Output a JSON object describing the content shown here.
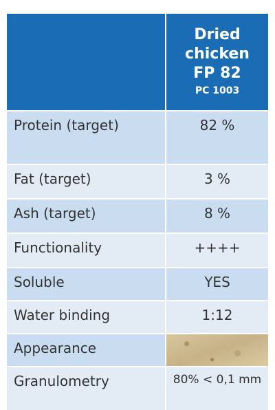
{
  "table": {
    "header": {
      "product": [
        "Dried",
        "chicken",
        "FP 82"
      ],
      "code": "PC 1003"
    },
    "rows": [
      {
        "label": "Protein (target)",
        "value": "82 %"
      },
      {
        "label": "Fat (target)",
        "value": "3 %"
      },
      {
        "label": "Ash (target)",
        "value": "8 %"
      },
      {
        "label": "Functionality",
        "value": "++++"
      },
      {
        "label": "Soluble",
        "value": "YES"
      },
      {
        "label": "Water binding",
        "value": "1:12"
      },
      {
        "label": "Appearance"
      },
      {
        "label": "Granulometry",
        "value": "80% < 0,1 mm"
      }
    ]
  }
}
